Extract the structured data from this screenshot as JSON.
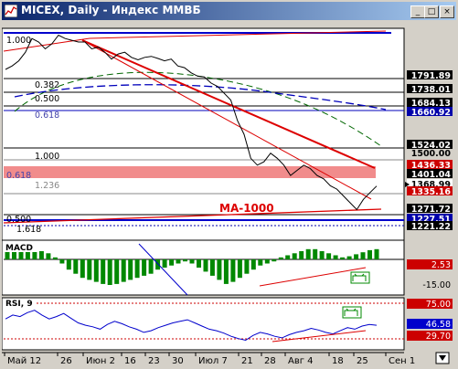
{
  "window": {
    "title": "MICEX, Daily - Индекс ММВБ",
    "buttons": {
      "minimize": "_",
      "maximize": "□",
      "close": "×"
    }
  },
  "colors": {
    "price": "#000000",
    "trend": "#dd0000",
    "ma_fast": "#006600",
    "ma_slow": "#0000bb",
    "bull": "#008800",
    "bear": "#cc0000",
    "rsi": "#0000cc"
  },
  "main_panel": {
    "fib_upper": [
      "0.382",
      "0.500",
      "0.618"
    ],
    "fib_lower": [
      "1.000",
      "0.618",
      "1.236"
    ],
    "fib_bottom": [
      "0.500",
      "1.618"
    ],
    "level_top": "1.000",
    "ma_label": "MA-1000",
    "price_scale": [
      {
        "text": "1791.89",
        "style": "box-dark"
      },
      {
        "text": "1738.01",
        "style": "box-dark"
      },
      {
        "text": "1684.13",
        "style": "box-dark"
      },
      {
        "text": "1660.92",
        "style": "box-blue"
      },
      {
        "text": "1524.02",
        "style": "box-dark"
      },
      {
        "text": "1500.00",
        "style": "plain"
      },
      {
        "text": "1436.33",
        "style": "box-red"
      },
      {
        "text": "1401.04",
        "style": "box-dark"
      },
      {
        "text": "1368.99",
        "style": "current"
      },
      {
        "text": "1335.16",
        "style": "box-red"
      },
      {
        "text": "1271.72",
        "style": "box-dark"
      },
      {
        "text": "1227.51",
        "style": "box-blue"
      },
      {
        "text": "1221.22",
        "style": "box-dark"
      }
    ]
  },
  "macd_panel": {
    "label": "MACD",
    "scale": [
      "2.53",
      "-15.00"
    ]
  },
  "rsi_panel": {
    "label": "RSI, 9",
    "scale": [
      "75.00",
      "46.58",
      "29.70"
    ]
  },
  "x_axis": {
    "dates": [
      "Май 12",
      "26",
      "Июн 2",
      "16",
      "23",
      "30",
      "Июл 7",
      "21",
      "28",
      "Авг 4",
      "18",
      "25",
      "Сен 1"
    ]
  },
  "chart_data": [
    {
      "type": "line",
      "title": "",
      "series": [
        {
          "name": "MICEX",
          "values": [
            1710,
            1720,
            1735,
            1760,
            1800,
            1790,
            1770,
            1785,
            1810,
            1800,
            1795,
            1790,
            1790,
            1770,
            1775,
            1760,
            1740,
            1755,
            1760,
            1745,
            1738,
            1745,
            1748,
            1742,
            1735,
            1740,
            1720,
            1715,
            1700,
            1690,
            1688,
            1670,
            1660,
            1640,
            1620,
            1560,
            1520,
            1450,
            1430,
            1440,
            1465,
            1450,
            1430,
            1400,
            1415,
            1430,
            1420,
            1400,
            1390,
            1370,
            1360,
            1340,
            1320,
            1300,
            1330,
            1350,
            1369
          ]
        },
        {
          "name": "MA-1000",
          "values": [
            1258,
            1271
          ]
        }
      ]
    },
    {
      "type": "bar",
      "title": "",
      "series": [
        {
          "name": "MACD",
          "values": [
            8,
            10,
            12,
            12,
            10,
            8,
            6,
            2,
            -4,
            -10,
            -14,
            -18,
            -20,
            -22,
            -24,
            -25,
            -24,
            -22,
            -20,
            -18,
            -16,
            -14,
            -10,
            -8,
            -6,
            -4,
            -2,
            -4,
            -8,
            -12,
            -16,
            -20,
            -24,
            -22,
            -18,
            -14,
            -10,
            -6,
            -4,
            -2,
            2,
            4,
            6,
            8,
            10,
            10,
            8,
            6,
            4,
            2,
            3,
            5,
            7,
            9,
            10
          ]
        }
      ]
    },
    {
      "type": "line",
      "title": "",
      "series": [
        {
          "name": "RSI",
          "values": [
            55,
            60,
            58,
            63,
            66,
            60,
            55,
            58,
            62,
            56,
            50,
            47,
            45,
            42,
            48,
            52,
            49,
            45,
            42,
            38,
            40,
            44,
            47,
            50,
            52,
            54,
            50,
            46,
            42,
            40,
            37,
            33,
            30,
            28,
            34,
            38,
            36,
            33,
            31,
            35,
            38,
            40,
            43,
            41,
            38,
            36,
            40,
            44,
            42,
            46,
            48,
            47
          ]
        }
      ]
    }
  ]
}
